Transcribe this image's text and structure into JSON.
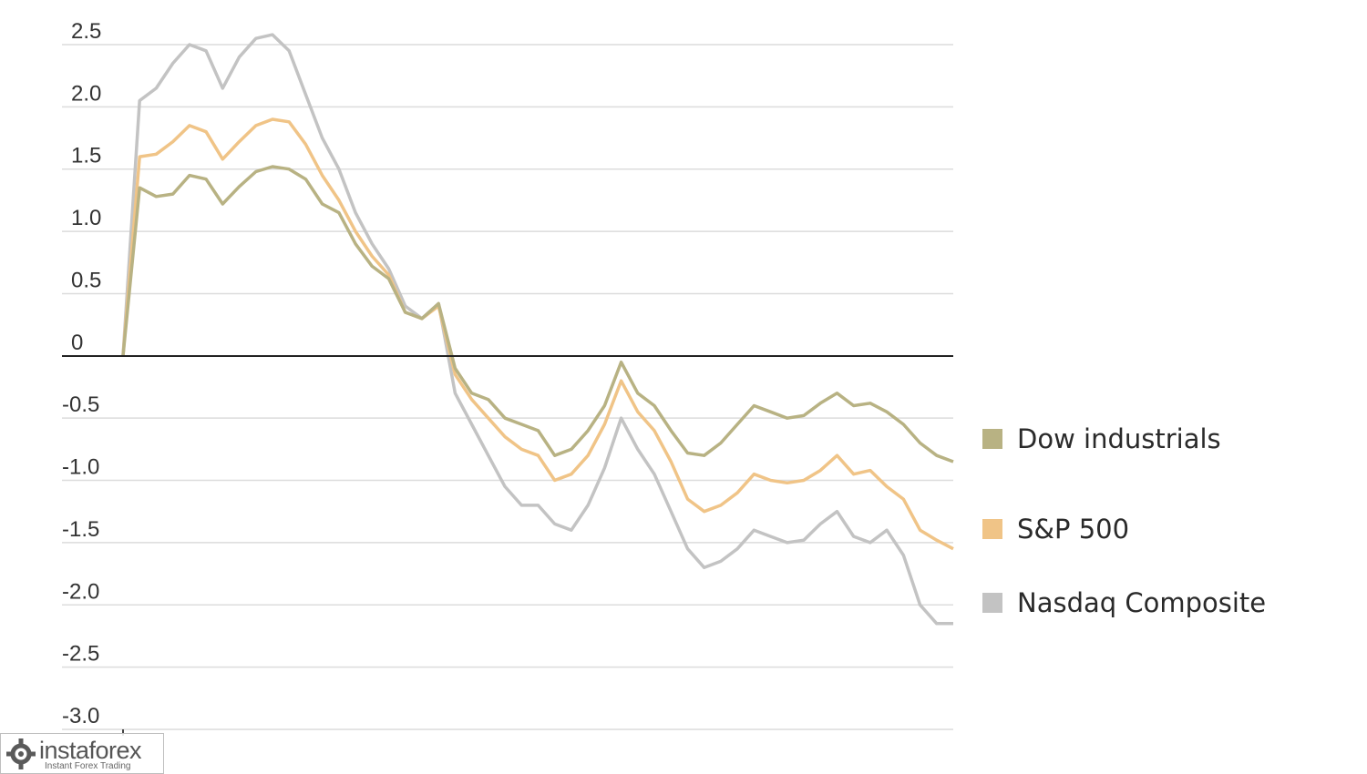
{
  "chart_data": {
    "type": "line",
    "title": "",
    "xlabel": "",
    "ylabel": "",
    "ylim": [
      -3.0,
      2.5
    ],
    "yticks": [
      {
        "value": 2.5,
        "label": "2.5"
      },
      {
        "value": 2.0,
        "label": "2.0"
      },
      {
        "value": 1.5,
        "label": "1.5"
      },
      {
        "value": 1.0,
        "label": "1.0"
      },
      {
        "value": 0.5,
        "label": "0.5"
      },
      {
        "value": 0,
        "label": "0"
      },
      {
        "value": -0.5,
        "label": "-0.5"
      },
      {
        "value": -1.0,
        "label": "-1.0"
      },
      {
        "value": -1.5,
        "label": "-1.5"
      },
      {
        "value": -2.0,
        "label": "-2.0"
      },
      {
        "value": -2.5,
        "label": "-2.5"
      },
      {
        "value": -3.0,
        "label": "-3.0"
      }
    ],
    "grid": true,
    "legend_position": "right",
    "x": [
      0,
      2,
      4,
      6,
      8,
      10,
      12,
      14,
      16,
      18,
      20,
      22,
      24,
      26,
      28,
      30,
      32,
      34,
      36,
      38,
      40,
      42,
      44,
      46,
      48,
      50,
      52,
      54,
      56,
      58,
      60,
      62,
      64,
      66,
      68,
      70,
      72,
      74,
      76,
      78,
      80,
      82,
      84,
      86,
      88,
      90,
      92,
      94,
      96,
      98,
      100
    ],
    "series": [
      {
        "name": "Dow industrials",
        "color": "#b8b283",
        "values": [
          0,
          1.35,
          1.28,
          1.3,
          1.45,
          1.42,
          1.22,
          1.36,
          1.48,
          1.52,
          1.5,
          1.42,
          1.22,
          1.15,
          0.9,
          0.72,
          0.62,
          0.35,
          0.3,
          0.42,
          -0.1,
          -0.3,
          -0.35,
          -0.5,
          -0.55,
          -0.6,
          -0.8,
          -0.75,
          -0.6,
          -0.4,
          -0.05,
          -0.3,
          -0.4,
          -0.6,
          -0.78,
          -0.8,
          -0.7,
          -0.55,
          -0.4,
          -0.45,
          -0.5,
          -0.48,
          -0.38,
          -0.3,
          -0.4,
          -0.38,
          -0.45,
          -0.55,
          -0.7,
          -0.8,
          -0.85
        ]
      },
      {
        "name": "S&P 500",
        "color": "#f0c487",
        "values": [
          0,
          1.6,
          1.62,
          1.72,
          1.85,
          1.8,
          1.58,
          1.72,
          1.85,
          1.9,
          1.88,
          1.7,
          1.45,
          1.25,
          1.0,
          0.8,
          0.65,
          0.35,
          0.3,
          0.4,
          -0.15,
          -0.35,
          -0.5,
          -0.65,
          -0.75,
          -0.8,
          -1.0,
          -0.95,
          -0.8,
          -0.55,
          -0.2,
          -0.45,
          -0.6,
          -0.85,
          -1.15,
          -1.25,
          -1.2,
          -1.1,
          -0.95,
          -1.0,
          -1.02,
          -1.0,
          -0.92,
          -0.8,
          -0.95,
          -0.92,
          -1.05,
          -1.15,
          -1.4,
          -1.48,
          -1.55
        ]
      },
      {
        "name": "Nasdaq Composite",
        "color": "#c3c3c3",
        "values": [
          0,
          2.05,
          2.15,
          2.35,
          2.5,
          2.45,
          2.15,
          2.4,
          2.55,
          2.58,
          2.45,
          2.1,
          1.75,
          1.5,
          1.15,
          0.9,
          0.7,
          0.4,
          0.3,
          0.42,
          -0.3,
          -0.55,
          -0.8,
          -1.05,
          -1.2,
          -1.2,
          -1.35,
          -1.4,
          -1.2,
          -0.9,
          -0.5,
          -0.75,
          -0.95,
          -1.25,
          -1.55,
          -1.7,
          -1.65,
          -1.55,
          -1.4,
          -1.45,
          -1.5,
          -1.48,
          -1.35,
          -1.25,
          -1.45,
          -1.5,
          -1.4,
          -1.6,
          -2.0,
          -2.15,
          -2.15
        ]
      }
    ]
  },
  "watermark": {
    "name": "instaforex",
    "tagline": "Instant Forex Trading",
    "color": "#555555"
  }
}
